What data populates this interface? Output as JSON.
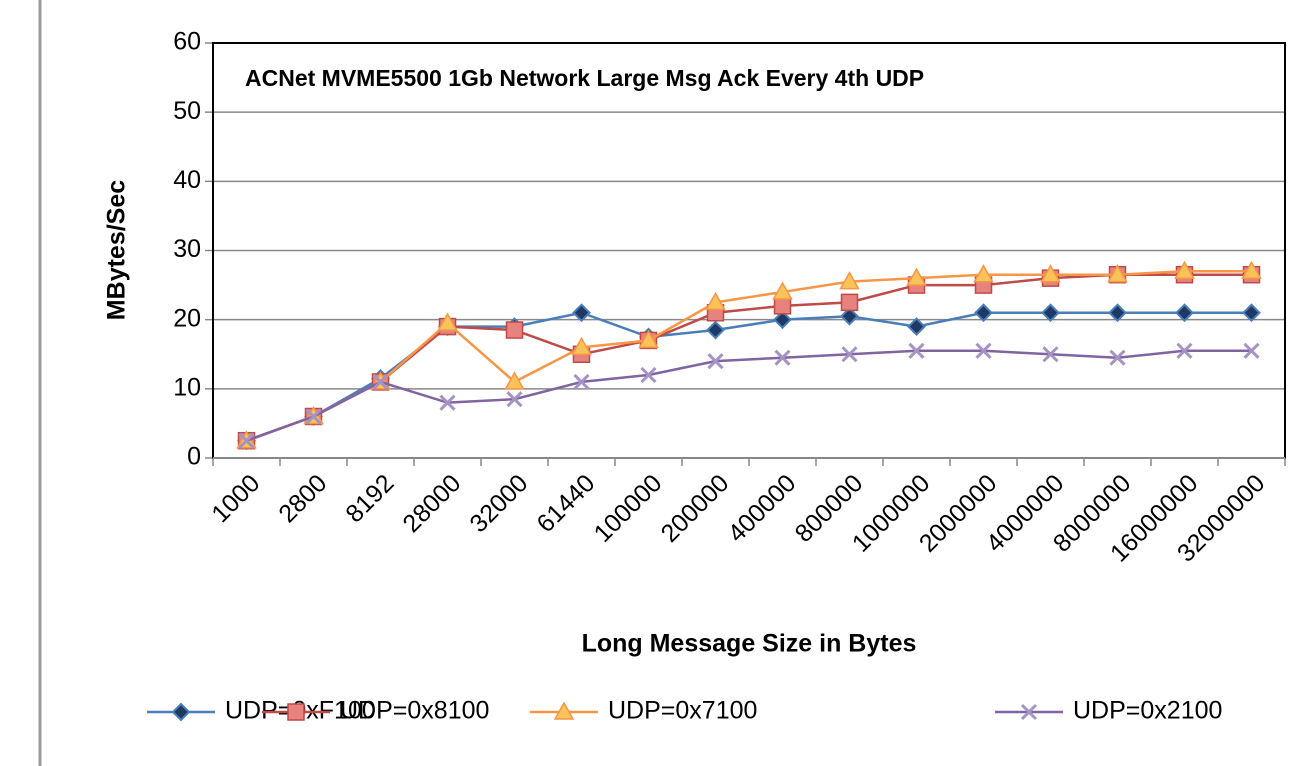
{
  "chart_data": {
    "type": "line",
    "title": "ACNet MVME5500 1Gb Network Large Msg Ack Every 4th UDP",
    "x_label": "Long Message Size in Bytes",
    "y_label": "MBytes/Sec",
    "categories": [
      "1000",
      "2800",
      "8192",
      "28000",
      "32000",
      "61440",
      "100000",
      "200000",
      "400000",
      "800000",
      "1000000",
      "2000000",
      "4000000",
      "8000000",
      "16000000",
      "32000000"
    ],
    "series": [
      {
        "name": "UDP=0xF100",
        "color": "#4a7ebb",
        "marker": "diamond",
        "values": [
          2.5,
          6,
          11.5,
          19,
          19,
          21,
          17.5,
          18.5,
          20,
          20.5,
          19,
          21,
          21,
          21,
          21,
          21
        ]
      },
      {
        "name": "UDP=0x8100",
        "color": "#be4b48",
        "marker": "square",
        "values": [
          2.5,
          6,
          11,
          19,
          18.5,
          15,
          17,
          21,
          22,
          22.5,
          25,
          25,
          26,
          26.5,
          26.5,
          26.5
        ]
      },
      {
        "name": "UDP=0x7100",
        "color": "#f79646",
        "marker": "triangle",
        "values": [
          2.5,
          6,
          11,
          19.5,
          11,
          16,
          17,
          22.5,
          24,
          25.5,
          26,
          26.5,
          26.5,
          26.5,
          27,
          27
        ]
      },
      {
        "name": "UDP=0x2100",
        "color": "#8064a2",
        "marker": "x",
        "values": [
          2.5,
          6,
          11,
          8,
          8.5,
          11,
          12,
          14,
          14.5,
          15,
          15.5,
          15.5,
          15,
          14.5,
          15.5,
          15.5
        ]
      }
    ],
    "ylim": [
      0,
      60
    ],
    "yticks": [
      0,
      10,
      20,
      30,
      40,
      50,
      60
    ],
    "grid": true,
    "legend": "bottom"
  }
}
